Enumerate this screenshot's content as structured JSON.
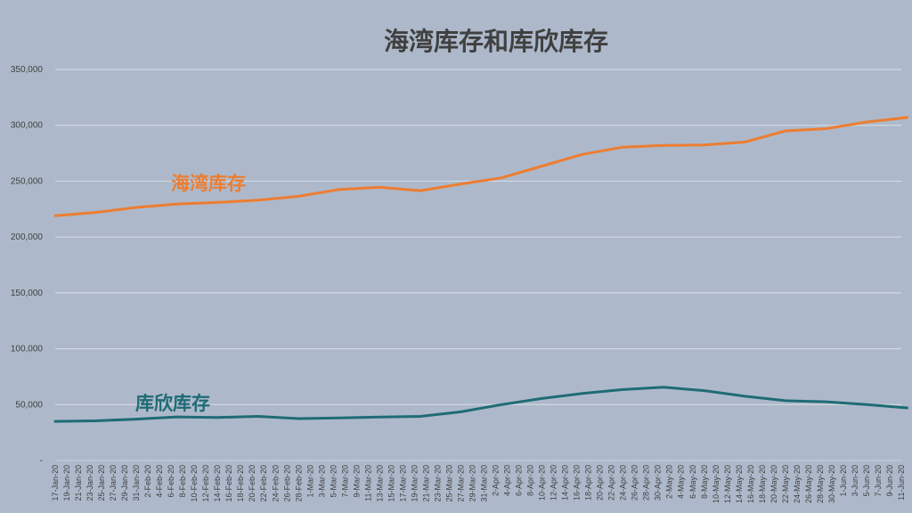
{
  "chart_data": {
    "type": "line",
    "title": "海湾库存和库欣库存",
    "xlabel": "",
    "ylabel": "",
    "ylim": [
      0,
      350000
    ],
    "yticks": [
      "-",
      "50,000",
      "100,000",
      "150,000",
      "200,000",
      "250,000",
      "300,000",
      "350,000"
    ],
    "grid": true,
    "x": [
      "17-Jan-20",
      "19-Jan-20",
      "21-Jan-20",
      "23-Jan-20",
      "25-Jan-20",
      "27-Jan-20",
      "29-Jan-20",
      "31-Jan-20",
      "2-Feb-20",
      "4-Feb-20",
      "6-Feb-20",
      "8-Feb-20",
      "10-Feb-20",
      "12-Feb-20",
      "14-Feb-20",
      "16-Feb-20",
      "18-Feb-20",
      "20-Feb-20",
      "22-Feb-20",
      "24-Feb-20",
      "26-Feb-20",
      "28-Feb-20",
      "1-Mar-20",
      "3-Mar-20",
      "5-Mar-20",
      "7-Mar-20",
      "9-Mar-20",
      "11-Mar-20",
      "13-Mar-20",
      "15-Mar-20",
      "17-Mar-20",
      "19-Mar-20",
      "21-Mar-20",
      "23-Mar-20",
      "25-Mar-20",
      "27-Mar-20",
      "29-Mar-20",
      "31-Mar-20",
      "2-Apr-20",
      "4-Apr-20",
      "6-Apr-20",
      "8-Apr-20",
      "10-Apr-20",
      "12-Apr-20",
      "14-Apr-20",
      "16-Apr-20",
      "18-Apr-20",
      "20-Apr-20",
      "22-Apr-20",
      "24-Apr-20",
      "26-Apr-20",
      "28-Apr-20",
      "30-Apr-20",
      "2-May-20",
      "4-May-20",
      "6-May-20",
      "8-May-20",
      "10-May-20",
      "12-May-20",
      "14-May-20",
      "16-May-20",
      "18-May-20",
      "20-May-20",
      "22-May-20",
      "24-May-20",
      "26-May-20",
      "28-May-20",
      "30-May-20",
      "1-Jun-20",
      "3-Jun-20",
      "5-Jun-20",
      "7-Jun-20",
      "9-Jun-20",
      "11-Jun-20"
    ],
    "series": [
      {
        "name": "海湾库存",
        "color": "#ed7d31",
        "points": [
          [
            "17-Jan-20",
            219000
          ],
          [
            "24-Jan-20",
            222000
          ],
          [
            "31-Jan-20",
            226500
          ],
          [
            "7-Feb-20",
            229500
          ],
          [
            "14-Feb-20",
            231000
          ],
          [
            "21-Feb-20",
            233000
          ],
          [
            "28-Feb-20",
            236500
          ],
          [
            "6-Mar-20",
            242500
          ],
          [
            "13-Mar-20",
            244500
          ],
          [
            "20-Mar-20",
            241500
          ],
          [
            "27-Mar-20",
            247500
          ],
          [
            "3-Apr-20",
            253000
          ],
          [
            "10-Apr-20",
            263500
          ],
          [
            "17-Apr-20",
            274000
          ],
          [
            "24-Apr-20",
            280500
          ],
          [
            "1-May-20",
            282000
          ],
          [
            "8-May-20",
            282500
          ],
          [
            "15-May-20",
            285000
          ],
          [
            "22-May-20",
            295000
          ],
          [
            "29-May-20",
            297000
          ],
          [
            "5-Jun-20",
            303000
          ],
          [
            "12-Jun-20",
            307000
          ]
        ]
      },
      {
        "name": "库欣库存",
        "color": "#1f6b75",
        "points": [
          [
            "17-Jan-20",
            35000
          ],
          [
            "24-Jan-20",
            35500
          ],
          [
            "31-Jan-20",
            37000
          ],
          [
            "7-Feb-20",
            39000
          ],
          [
            "14-Feb-20",
            38500
          ],
          [
            "21-Feb-20",
            39500
          ],
          [
            "28-Feb-20",
            37500
          ],
          [
            "6-Mar-20",
            38000
          ],
          [
            "13-Mar-20",
            38800
          ],
          [
            "20-Mar-20",
            39500
          ],
          [
            "27-Mar-20",
            43500
          ],
          [
            "3-Apr-20",
            50000
          ],
          [
            "10-Apr-20",
            55500
          ],
          [
            "17-Apr-20",
            60000
          ],
          [
            "24-Apr-20",
            63500
          ],
          [
            "1-May-20",
            65500
          ],
          [
            "8-May-20",
            62500
          ],
          [
            "15-May-20",
            57500
          ],
          [
            "22-May-20",
            53500
          ],
          [
            "29-May-20",
            52500
          ],
          [
            "5-Jun-20",
            50000
          ],
          [
            "12-Jun-20",
            47000
          ]
        ]
      }
    ]
  }
}
